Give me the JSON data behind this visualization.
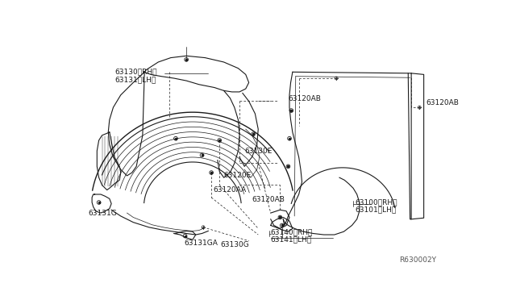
{
  "bg_color": "#ffffff",
  "line_color": "#1a1a1a",
  "ref_code": "R630002Y",
  "labels": {
    "top_left_1": "63130〈RH〉",
    "top_left_2": "63131〈LH〉",
    "mid_right_e": "63130E",
    "mid_d": "63120E",
    "mid_aa": "63120AA",
    "bot_g": "63130G",
    "bot_left_g": "63131G",
    "bot_ga": "63131GA",
    "ab1": "63120AB",
    "ab2": "63120AB",
    "ab3": "63120AB",
    "rh_100": "63100〈RH〉",
    "lh_101": "63101〈LH〉",
    "rh_140": "63140〈RH〉",
    "lh_141": "63141〈LH〉"
  }
}
